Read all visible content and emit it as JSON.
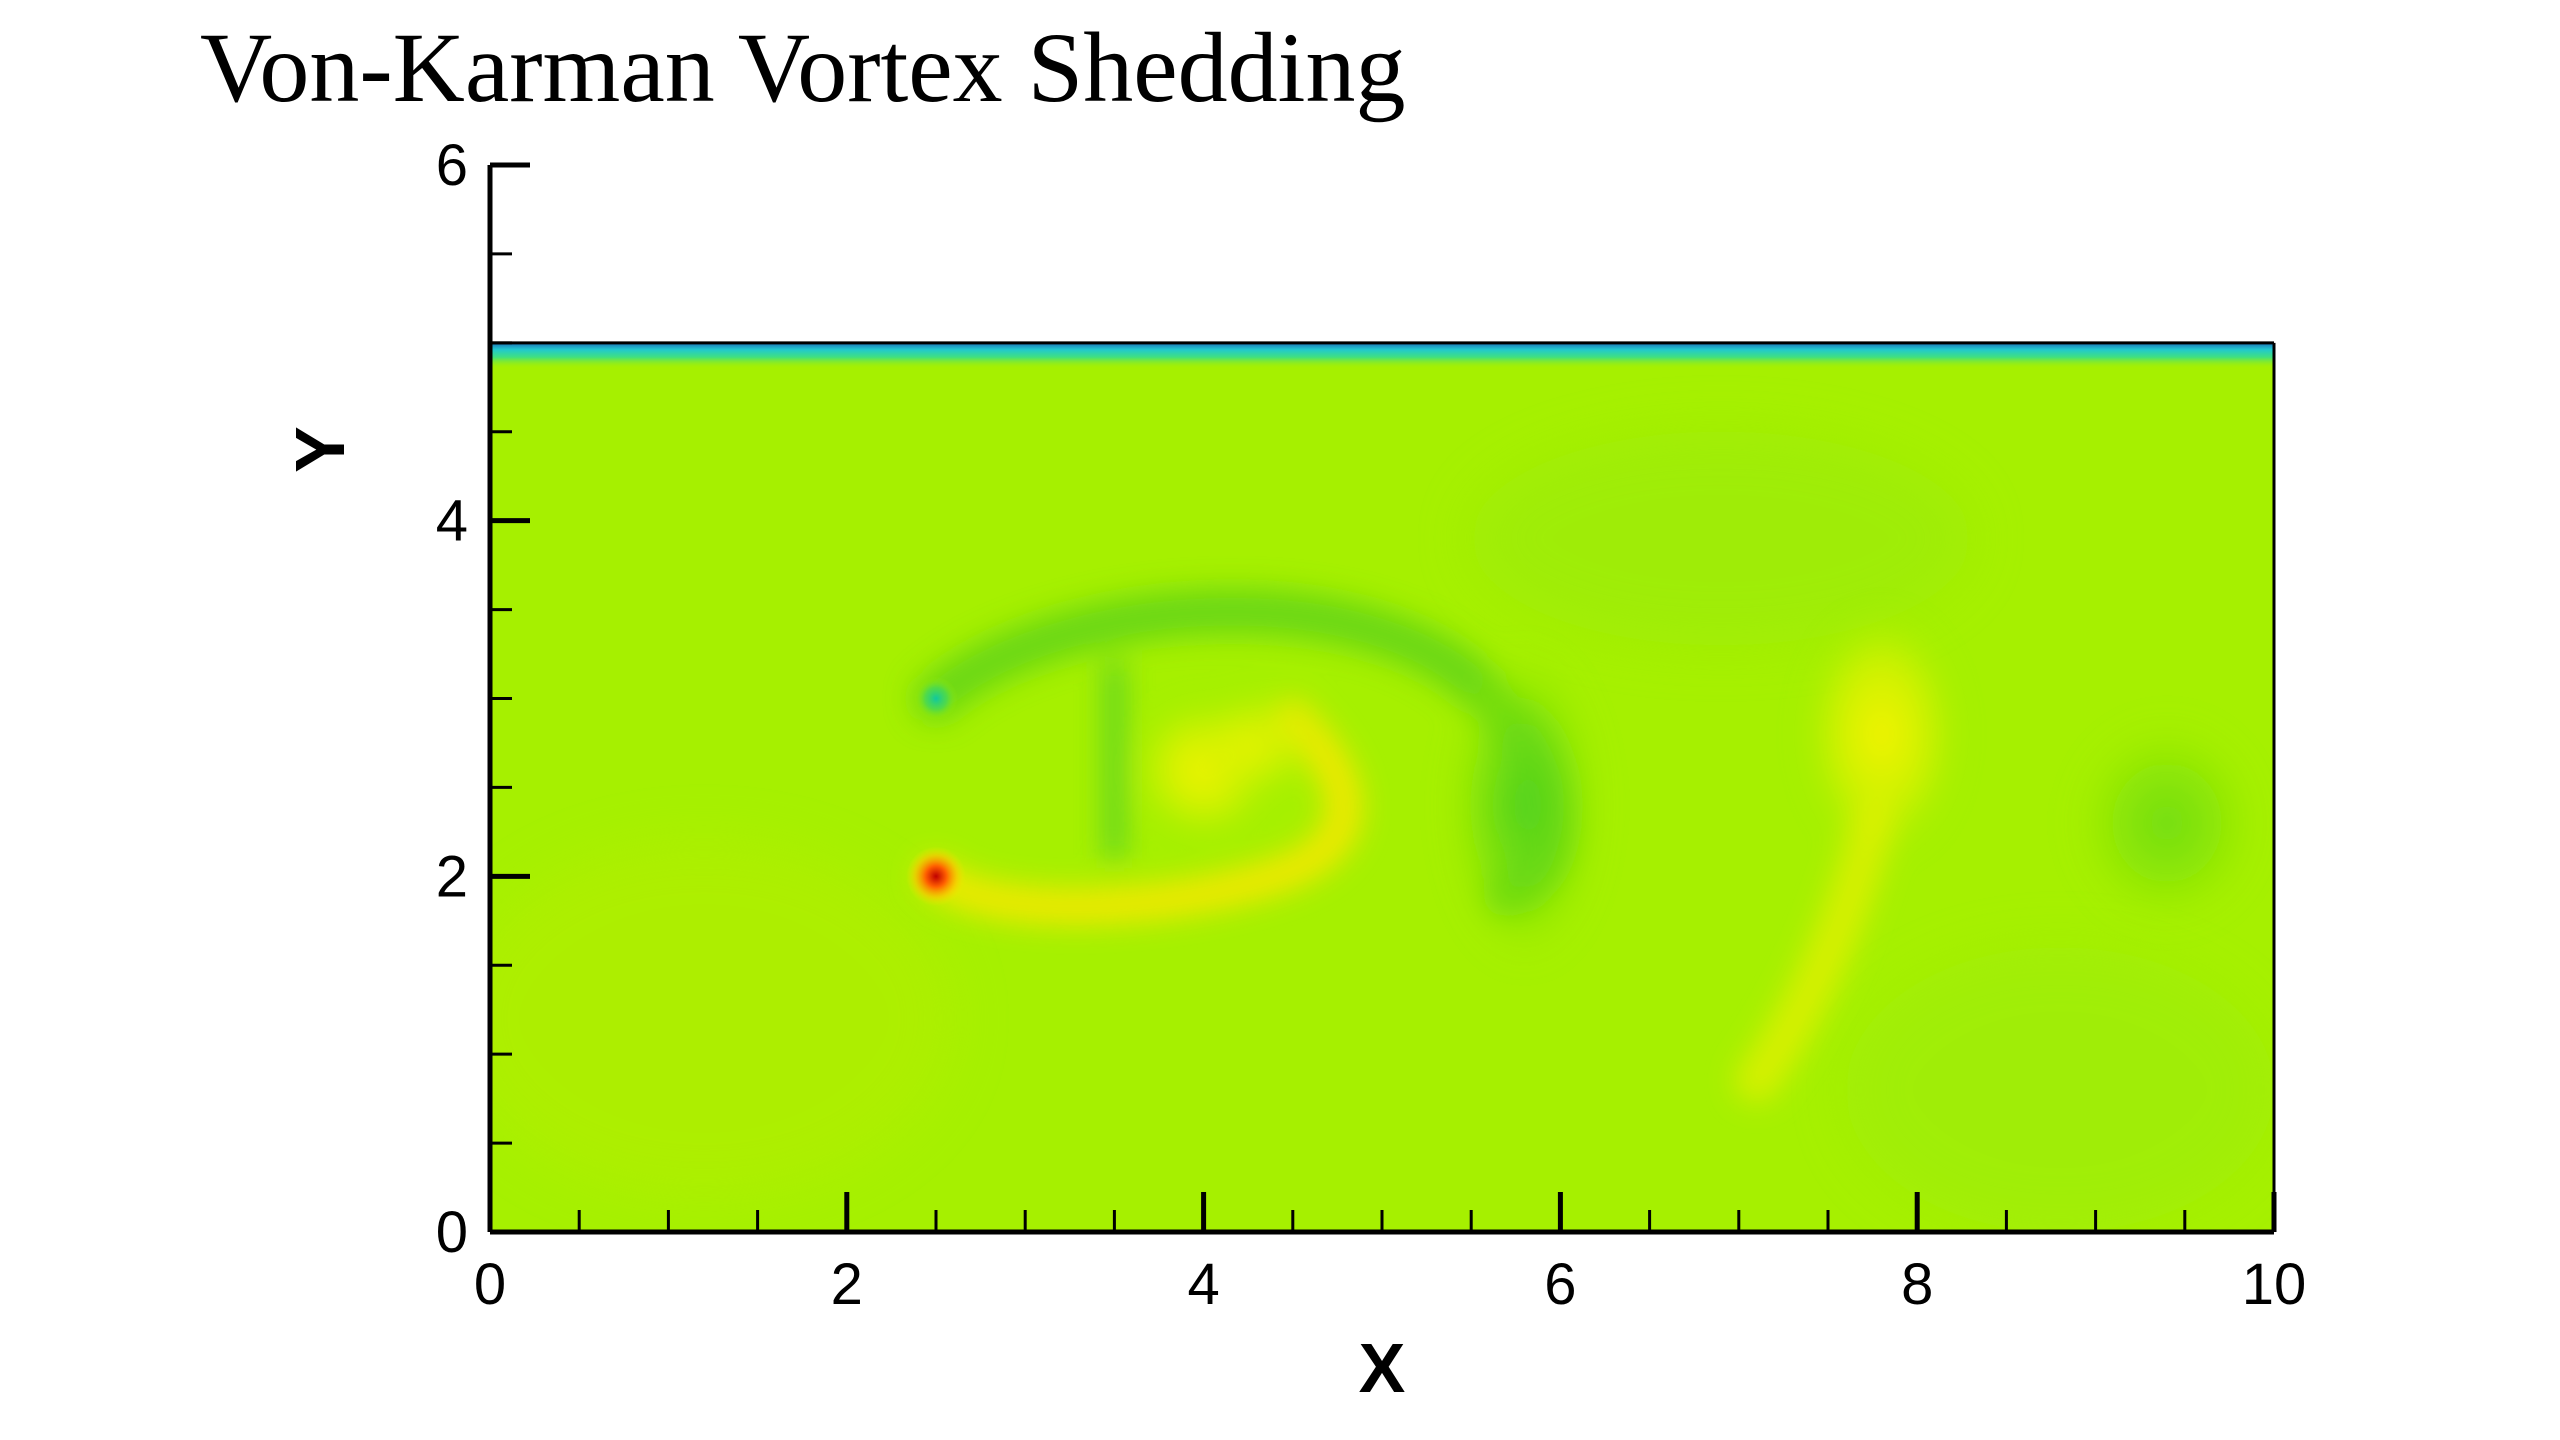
{
  "title": "Von-Karman Vortex Shedding",
  "chart_data": {
    "type": "heatmap",
    "title": "Von-Karman Vortex Shedding",
    "xlabel": "X",
    "ylabel": "Y",
    "xlim": [
      0,
      10
    ],
    "ylim": [
      0,
      6
    ],
    "x_ticks": [
      "0",
      "2",
      "4",
      "6",
      "8",
      "10"
    ],
    "y_ticks": [
      "0",
      "2",
      "4",
      "6"
    ],
    "x_tick_values": [
      0,
      2,
      4,
      6,
      8,
      10
    ],
    "y_tick_values": [
      0,
      2,
      4,
      6
    ],
    "x_minor_step": 0.5,
    "y_minor_step": 0.5,
    "grid": false,
    "colors": {
      "field_base": "#a6f000",
      "wall_top": "#1e6eb4",
      "wall_mid": "#20e0c8",
      "wake_green": "#58d818",
      "vortex_yellow": "#f0f000",
      "hot_red": "#c80000"
    },
    "field_extent": {
      "x": [
        0,
        10
      ],
      "y": [
        0,
        5
      ]
    },
    "features": [
      {
        "kind": "wall",
        "y": 5.0
      },
      {
        "kind": "upper-shear-arc",
        "x": [
          2.5,
          5.9
        ],
        "y": [
          2.2,
          3.5
        ]
      },
      {
        "kind": "cylinder-upper-spot",
        "x": 2.5,
        "y": 3.0
      },
      {
        "kind": "cylinder-lower-spot",
        "x": 2.5,
        "y": 2.0
      },
      {
        "kind": "lower-shear-band",
        "x": [
          2.5,
          4.6
        ],
        "y": [
          1.7,
          2.1
        ]
      },
      {
        "kind": "vortex-core",
        "x": 4.0,
        "y": 2.6
      },
      {
        "kind": "vertical-streak",
        "x": 3.5,
        "y": [
          2.1,
          3.2
        ]
      },
      {
        "kind": "wake-vortex",
        "x": 5.8,
        "y": 2.4
      },
      {
        "kind": "shed-vortex",
        "x": 7.8,
        "y": 2.8
      },
      {
        "kind": "lower-tail",
        "x": [
          7.1,
          7.8
        ],
        "y": [
          0.8,
          2.3
        ]
      },
      {
        "kind": "far-wake",
        "x": 9.4,
        "y": 2.3
      }
    ]
  }
}
